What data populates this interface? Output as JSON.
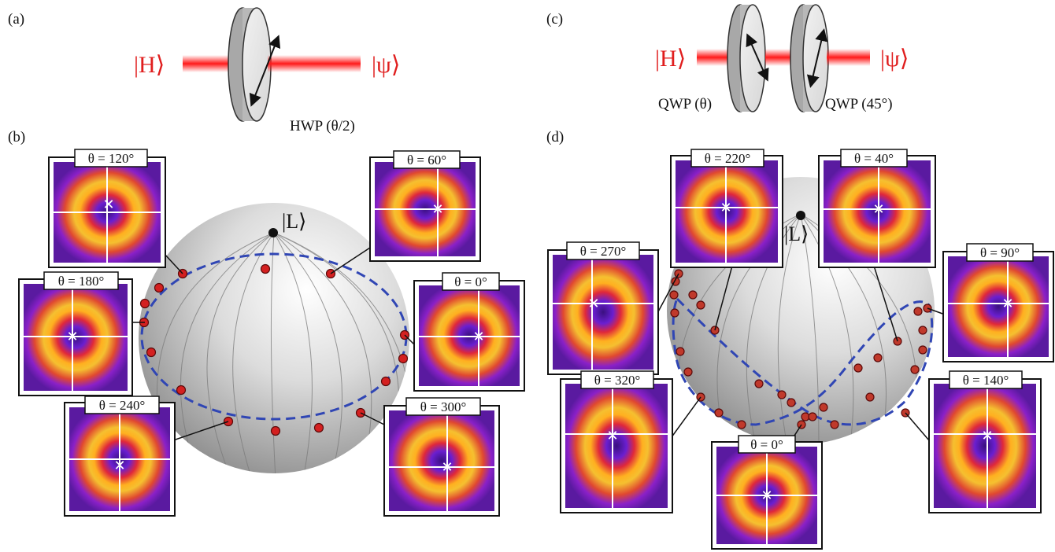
{
  "panels": {
    "a": "(a)",
    "b": "(b)",
    "c": "(c)",
    "d": "(d)"
  },
  "kets": {
    "input": "|H⟩",
    "output": "|ψ⟩",
    "pole": "|L⟩"
  },
  "waveplates": {
    "hwp": "HWP (θ/2)",
    "qwp1": "QWP (θ)",
    "qwp2": "QWP (45°)"
  },
  "insets_b": [
    "θ = 120°",
    "θ = 60°",
    "θ = 180°",
    "θ = 0°",
    "θ = 240°",
    "θ = 300°"
  ],
  "insets_d": [
    "θ = 220°",
    "θ = 40°",
    "θ = 270°",
    "θ = 90°",
    "θ = 320°",
    "θ = 140°",
    "θ = 0°"
  ],
  "colors": {
    "beam": "#ff2020",
    "ket": "#e01e1e",
    "trajectory": "#3046b4",
    "data_point": "#d42020",
    "sphere": "#d8d8d8"
  }
}
